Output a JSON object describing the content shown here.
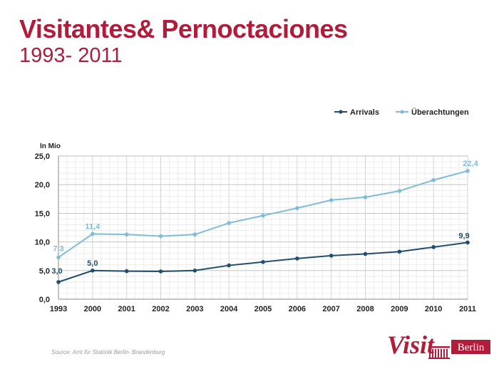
{
  "header": {
    "title": "Visitantes& Pernoctaciones",
    "subtitle": "1993- 2011"
  },
  "chart_data": {
    "type": "line",
    "categories": [
      "1993",
      "2000",
      "2001",
      "2002",
      "2003",
      "2004",
      "2005",
      "2006",
      "2007",
      "2008",
      "2009",
      "2010",
      "2011"
    ],
    "series": [
      {
        "name": "Arrivals",
        "color": "#1f4e6e",
        "values": [
          3.0,
          5.0,
          4.9,
          4.85,
          5.0,
          5.9,
          6.5,
          7.1,
          7.6,
          7.9,
          8.3,
          9.1,
          9.9
        ],
        "labels": [
          {
            "index": 0,
            "text": "3,0"
          },
          {
            "index": 1,
            "text": "5,0"
          },
          {
            "index": 12,
            "text": "9,9"
          }
        ]
      },
      {
        "name": "Überachtungen",
        "color": "#7fbcd8",
        "values": [
          7.3,
          11.4,
          11.3,
          11.0,
          11.3,
          13.3,
          14.6,
          15.9,
          17.3,
          17.8,
          18.9,
          20.8,
          22.4
        ],
        "labels": [
          {
            "index": 0,
            "text": "7,3"
          },
          {
            "index": 1,
            "text": "11,4"
          },
          {
            "index": 12,
            "text": "22,4"
          }
        ]
      }
    ],
    "ylabel": "In Mio",
    "ylim": [
      0,
      25
    ],
    "yticks": [
      {
        "value": 0,
        "label": "0,0"
      },
      {
        "value": 5,
        "label": "5,0"
      },
      {
        "value": 10,
        "label": "10,0"
      },
      {
        "value": 15,
        "label": "15,0"
      },
      {
        "value": 20,
        "label": "20,0"
      },
      {
        "value": 25,
        "label": "25,0"
      }
    ],
    "grid": true,
    "minor_grid": true,
    "legend": "top-right"
  },
  "footer": {
    "source": "Source: Amt für Statistik Berlin- Brandenburg"
  },
  "logo": {
    "script_text": "Visit",
    "city_text": "Berlin",
    "color": "#b01c3a"
  }
}
